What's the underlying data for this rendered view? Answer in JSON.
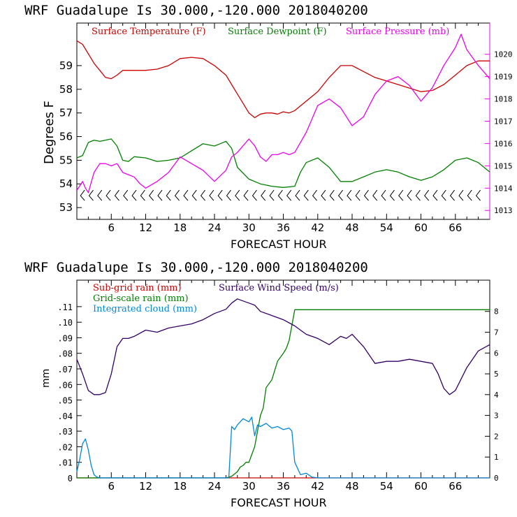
{
  "chart_data": [
    {
      "type": "line",
      "title": "WRF   Guadalupe Is  30.000,-120.000  2018040200",
      "xlabel": "FORECAST HOUR",
      "ylabel": "Degrees F",
      "xlim": [
        0,
        72
      ],
      "ylim": [
        52.5,
        60.8
      ],
      "y2lim": [
        1012.6,
        1021.4
      ],
      "xticks": [
        6,
        12,
        18,
        24,
        30,
        36,
        42,
        48,
        54,
        60,
        66
      ],
      "xtick_labels": [
        "6",
        "12",
        "18",
        "24",
        "30",
        "36",
        "42",
        "48",
        "54",
        "60",
        "66"
      ],
      "yticks": [
        53,
        54,
        55,
        56,
        57,
        58,
        59
      ],
      "ytick_labels": [
        "53",
        "54",
        "55",
        "56",
        "57",
        "58",
        "59"
      ],
      "y2ticks": [
        1013,
        1014,
        1015,
        1016,
        1017,
        1018,
        1019,
        1020
      ],
      "y2tick_labels": [
        "1013",
        "1014",
        "1015",
        "1016",
        "1017",
        "1018",
        "1019",
        "1020"
      ],
      "wind_barbs": "wind barbs at y=53.5 along forecast hours",
      "series": [
        {
          "name": "Surface Temperature (F)",
          "axis": "left",
          "color": "#cc0000",
          "x": [
            0,
            1,
            2,
            3,
            4,
            5,
            6,
            7,
            8,
            9,
            10,
            12,
            14,
            16,
            18,
            20,
            22,
            24,
            26,
            28,
            30,
            31,
            32,
            33,
            34,
            35,
            36,
            37,
            38,
            40,
            42,
            44,
            46,
            48,
            50,
            52,
            54,
            56,
            58,
            60,
            62,
            64,
            66,
            68,
            70,
            72
          ],
          "values": [
            60.05,
            59.9,
            59.5,
            59.1,
            58.8,
            58.5,
            58.45,
            58.6,
            58.8,
            58.8,
            58.8,
            58.8,
            58.85,
            59.0,
            59.3,
            59.35,
            59.3,
            59.0,
            58.6,
            57.8,
            57.0,
            56.8,
            56.95,
            57.0,
            57.0,
            56.95,
            57.05,
            57.0,
            57.1,
            57.5,
            57.9,
            58.5,
            59.0,
            59.0,
            58.75,
            58.5,
            58.35,
            58.2,
            58.05,
            57.9,
            57.95,
            58.2,
            58.6,
            59.0,
            59.2,
            59.2
          ]
        },
        {
          "name": "Surface Dewpoint (F)",
          "axis": "left",
          "color": "#008000",
          "x": [
            0,
            1,
            2,
            3,
            4,
            5,
            6,
            7,
            8,
            9,
            10,
            12,
            14,
            16,
            18,
            20,
            22,
            24,
            25,
            26,
            27,
            28,
            30,
            32,
            34,
            36,
            38,
            39,
            40,
            42,
            44,
            46,
            48,
            50,
            52,
            54,
            56,
            58,
            60,
            62,
            64,
            66,
            68,
            70,
            72
          ],
          "values": [
            55.1,
            55.2,
            55.75,
            55.85,
            55.8,
            55.85,
            55.9,
            55.6,
            55.0,
            54.95,
            55.15,
            55.1,
            54.95,
            55.0,
            55.1,
            55.4,
            55.7,
            55.6,
            55.7,
            55.8,
            55.5,
            54.7,
            54.2,
            54.0,
            53.9,
            53.85,
            53.9,
            54.5,
            54.9,
            55.1,
            54.7,
            54.1,
            54.1,
            54.3,
            54.5,
            54.6,
            54.5,
            54.3,
            54.15,
            54.3,
            54.6,
            55.0,
            55.1,
            54.9,
            54.5
          ]
        },
        {
          "name": "Surface Pressure (mb)",
          "axis": "right",
          "color": "#ee00ee",
          "x": [
            0,
            1,
            1.5,
            2,
            3,
            4,
            5,
            6,
            7,
            8,
            9,
            10,
            11,
            12,
            14,
            16,
            18,
            20,
            22,
            24,
            26,
            27,
            28,
            29,
            30,
            31,
            32,
            33,
            34,
            35,
            36,
            37,
            38,
            40,
            42,
            44,
            46,
            48,
            50,
            52,
            54,
            56,
            58,
            60,
            62,
            64,
            66,
            67,
            68,
            70,
            72
          ],
          "values": [
            1013.9,
            1014.3,
            1014.0,
            1013.8,
            1014.7,
            1015.1,
            1015.1,
            1015.0,
            1015.1,
            1014.7,
            1014.6,
            1014.5,
            1014.2,
            1014.0,
            1014.3,
            1014.7,
            1015.4,
            1015.1,
            1014.8,
            1014.3,
            1014.8,
            1015.4,
            1015.6,
            1015.9,
            1016.2,
            1015.9,
            1015.4,
            1015.2,
            1015.5,
            1015.5,
            1015.6,
            1015.5,
            1015.6,
            1016.5,
            1017.7,
            1018.0,
            1017.6,
            1016.8,
            1017.2,
            1018.2,
            1018.8,
            1019.0,
            1018.6,
            1017.9,
            1018.5,
            1019.5,
            1020.3,
            1020.9,
            1020.2,
            1019.5,
            1018.9
          ]
        }
      ]
    },
    {
      "type": "line",
      "title": "WRF   Guadalupe Is  30.000,-120.000  2018040200",
      "xlabel": "FORECAST HOUR",
      "ylabel": "mm",
      "xlim": [
        0,
        72
      ],
      "ylim": [
        0,
        0.127
      ],
      "y2lim": [
        0,
        9.5
      ],
      "xticks": [
        6,
        12,
        18,
        24,
        30,
        36,
        42,
        48,
        54,
        60,
        66
      ],
      "xtick_labels": [
        "6",
        "12",
        "18",
        "24",
        "30",
        "36",
        "42",
        "48",
        "54",
        "60",
        "66"
      ],
      "yticks": [
        0,
        0.01,
        0.02,
        0.03,
        0.04,
        0.05,
        0.06,
        0.07,
        0.08,
        0.09,
        0.1,
        0.11
      ],
      "ytick_labels": [
        "0",
        ".01",
        ".02",
        ".03",
        ".04",
        ".05",
        ".06",
        ".07",
        ".08",
        ".09",
        ".10",
        ".11"
      ],
      "y2ticks": [
        0,
        1,
        2,
        3,
        4,
        5,
        6,
        7,
        8
      ],
      "y2tick_labels": [
        "0",
        "1",
        "2",
        "3",
        "4",
        "5",
        "6",
        "7",
        "8"
      ],
      "series": [
        {
          "name": "Sub-grid rain (mm)",
          "axis": "left",
          "color": "#cc0000",
          "x": [
            0,
            72
          ],
          "values": [
            0,
            0
          ]
        },
        {
          "name": "Grid-scale rain (mm)",
          "axis": "left",
          "color": "#008000",
          "x": [
            0,
            26,
            27,
            28,
            28.5,
            29,
            29.5,
            30,
            31,
            31.5,
            32,
            32.5,
            33,
            34,
            35,
            36,
            36.5,
            37,
            37.5,
            38,
            72
          ],
          "values": [
            0,
            0,
            0.001,
            0.004,
            0.007,
            0.008,
            0.01,
            0.01,
            0.02,
            0.03,
            0.04,
            0.045,
            0.058,
            0.063,
            0.075,
            0.08,
            0.083,
            0.088,
            0.098,
            0.108,
            0.108
          ]
        },
        {
          "name": "Integrated cloud (mm)",
          "axis": "left",
          "color": "#0088dd",
          "x": [
            0,
            0.5,
            1,
            1.5,
            2,
            2.5,
            3,
            3.5,
            4,
            26.5,
            27,
            27.5,
            28,
            29,
            30,
            30.5,
            31,
            31.5,
            32,
            33,
            34,
            35,
            36,
            37,
            37.5,
            38,
            39,
            40,
            41,
            42,
            72
          ],
          "values": [
            0.004,
            0.012,
            0.022,
            0.025,
            0.018,
            0.008,
            0.002,
            0.0005,
            0,
            0,
            0.033,
            0.031,
            0.034,
            0.038,
            0.036,
            0.039,
            0.027,
            0.034,
            0.033,
            0.035,
            0.032,
            0.033,
            0.031,
            0.032,
            0.03,
            0.01,
            0.002,
            0.003,
            0.0005,
            0,
            0
          ]
        },
        {
          "name": "Surface Wind Speed (m/s)",
          "axis": "right",
          "color": "#330066",
          "x": [
            0,
            1,
            2,
            3,
            4,
            5,
            6,
            7,
            8,
            9,
            10,
            12,
            14,
            16,
            18,
            20,
            22,
            24,
            26,
            27,
            28,
            29,
            30,
            31,
            32,
            34,
            36,
            38,
            40,
            42,
            44,
            46,
            47,
            48,
            50,
            52,
            54,
            56,
            58,
            60,
            62,
            63,
            64,
            65,
            66,
            68,
            70,
            72
          ],
          "values": [
            5.7,
            5.0,
            4.2,
            4.0,
            4.0,
            4.1,
            5.0,
            6.3,
            6.7,
            6.7,
            6.8,
            7.1,
            7.0,
            7.2,
            7.3,
            7.4,
            7.6,
            7.9,
            8.1,
            8.4,
            8.6,
            8.5,
            8.4,
            8.3,
            8.0,
            7.8,
            7.6,
            7.3,
            6.9,
            6.7,
            6.4,
            6.8,
            6.7,
            6.9,
            6.3,
            5.5,
            5.6,
            5.6,
            5.7,
            5.6,
            5.5,
            5.0,
            4.3,
            4.0,
            4.2,
            5.3,
            6.1,
            6.4
          ]
        }
      ]
    }
  ]
}
